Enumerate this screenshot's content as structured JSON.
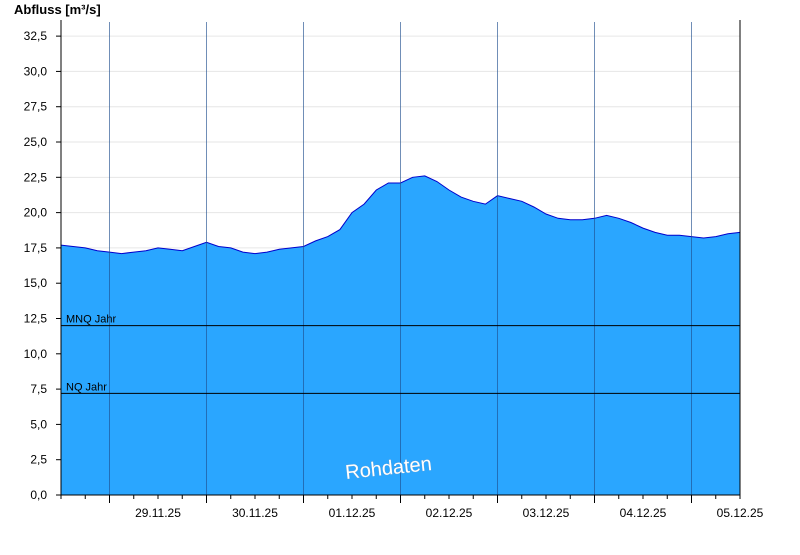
{
  "chart_data": {
    "type": "area",
    "title": "",
    "ylabel": "Abfluss [m³/s]",
    "xlabel": "",
    "ylim": [
      0,
      33.5
    ],
    "x_range": [
      "2025-11-28 12:00",
      "2025-12-05 12:00"
    ],
    "yticks": [
      0,
      2.5,
      5,
      7.5,
      10,
      12.5,
      15,
      17.5,
      20,
      22.5,
      25,
      27.5,
      30,
      32.5
    ],
    "ytick_labels": [
      "0,0",
      "2,5",
      "5,0",
      "7,5",
      "10,0",
      "12,5",
      "15,0",
      "17,5",
      "20,0",
      "22,5",
      "25,0",
      "27,5",
      "30,0",
      "32,5"
    ],
    "day_labels": [
      "29.11.25",
      "30.11.25",
      "01.12.25",
      "02.12.25",
      "03.12.25",
      "04.12.25",
      "05.12.25"
    ],
    "day_boundaries": [
      "2025-11-29 00:00",
      "2025-11-30 00:00",
      "2025-12-01 00:00",
      "2025-12-02 00:00",
      "2025-12-03 00:00",
      "2025-12-04 00:00",
      "2025-12-05 00:00"
    ],
    "grid": true,
    "watermark": "Rohdaten",
    "colors": {
      "area": "#2aa6ff",
      "line": "#0000cc",
      "background": "#ffffff"
    },
    "reference_lines": [
      {
        "label": "MNQ Jahr",
        "value": 12.0
      },
      {
        "label": "NQ Jahr",
        "value": 7.2
      }
    ],
    "series": [
      {
        "x": [
          "2025-11-28 12:00",
          "2025-11-28 15:00",
          "2025-11-28 18:00",
          "2025-11-28 21:00",
          "2025-11-29 00:00",
          "2025-11-29 03:00",
          "2025-11-29 06:00",
          "2025-11-29 09:00",
          "2025-11-29 12:00",
          "2025-11-29 15:00",
          "2025-11-29 18:00",
          "2025-11-29 21:00",
          "2025-11-30 00:00",
          "2025-11-30 03:00",
          "2025-11-30 06:00",
          "2025-11-30 09:00",
          "2025-11-30 12:00",
          "2025-11-30 15:00",
          "2025-11-30 18:00",
          "2025-11-30 21:00",
          "2025-12-01 00:00",
          "2025-12-01 03:00",
          "2025-12-01 06:00",
          "2025-12-01 09:00",
          "2025-12-01 12:00",
          "2025-12-01 15:00",
          "2025-12-01 18:00",
          "2025-12-01 21:00",
          "2025-12-02 00:00",
          "2025-12-02 03:00",
          "2025-12-02 06:00",
          "2025-12-02 09:00",
          "2025-12-02 12:00",
          "2025-12-02 15:00",
          "2025-12-02 18:00",
          "2025-12-02 21:00",
          "2025-12-03 00:00",
          "2025-12-03 03:00",
          "2025-12-03 06:00",
          "2025-12-03 09:00",
          "2025-12-03 12:00",
          "2025-12-03 15:00",
          "2025-12-03 18:00",
          "2025-12-03 21:00",
          "2025-12-04 00:00",
          "2025-12-04 03:00",
          "2025-12-04 06:00",
          "2025-12-04 09:00",
          "2025-12-04 12:00",
          "2025-12-04 15:00",
          "2025-12-04 18:00",
          "2025-12-04 21:00",
          "2025-12-05 00:00",
          "2025-12-05 03:00",
          "2025-12-05 06:00",
          "2025-12-05 09:00",
          "2025-12-05 12:00"
        ],
        "values": [
          17.7,
          17.6,
          17.5,
          17.3,
          17.2,
          17.1,
          17.2,
          17.3,
          17.5,
          17.4,
          17.3,
          17.6,
          17.9,
          17.6,
          17.5,
          17.2,
          17.1,
          17.2,
          17.4,
          17.5,
          17.6,
          18.0,
          18.3,
          18.8,
          20.0,
          20.6,
          21.6,
          22.1,
          22.1,
          22.5,
          22.6,
          22.2,
          21.6,
          21.1,
          20.8,
          20.6,
          21.2,
          21.0,
          20.8,
          20.4,
          19.9,
          19.6,
          19.5,
          19.5,
          19.6,
          19.8,
          19.6,
          19.3,
          18.9,
          18.6,
          18.4,
          18.4,
          18.3,
          18.2,
          18.3,
          18.5,
          18.6
        ]
      }
    ]
  }
}
